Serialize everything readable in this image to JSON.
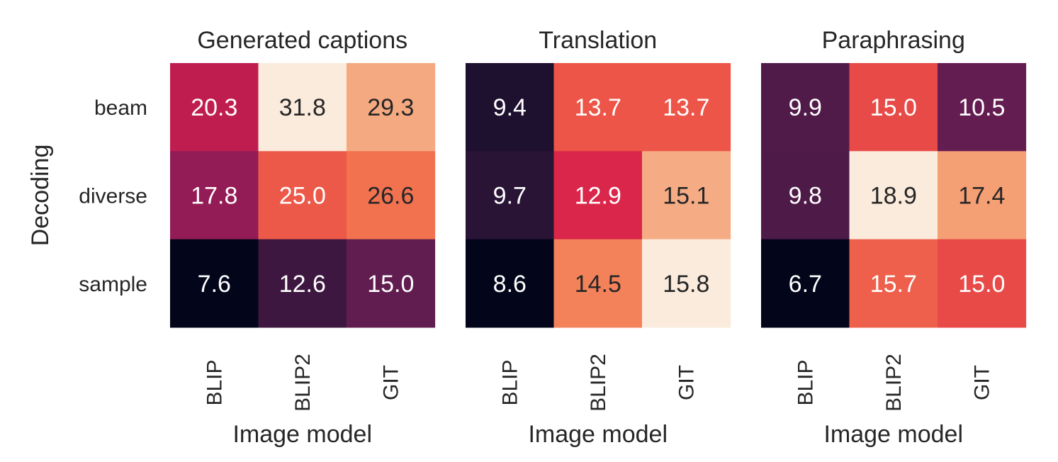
{
  "chart_data": [
    {
      "type": "heatmap",
      "title": "Generated captions",
      "xlabel": "Image model",
      "ylabel": "Decoding",
      "x_categories": [
        "BLIP",
        "BLIP2",
        "GIT"
      ],
      "y_categories": [
        "beam",
        "diverse",
        "sample"
      ],
      "values": [
        [
          20.3,
          31.8,
          29.3
        ],
        [
          17.8,
          25.0,
          26.6
        ],
        [
          7.6,
          12.6,
          15.0
        ]
      ],
      "labels": [
        [
          "20.3",
          "31.8",
          "29.3"
        ],
        [
          "17.8",
          "25.0",
          "26.6"
        ],
        [
          "7.6",
          "12.6",
          "15.0"
        ]
      ],
      "colormap": "rocket",
      "colorbar": false,
      "grid": false
    },
    {
      "type": "heatmap",
      "title": "Translation",
      "xlabel": "Image model",
      "ylabel": "",
      "x_categories": [
        "BLIP",
        "BLIP2",
        "GIT"
      ],
      "y_categories": [
        "beam",
        "diverse",
        "sample"
      ],
      "values": [
        [
          9.4,
          13.7,
          13.7
        ],
        [
          9.7,
          12.9,
          15.1
        ],
        [
          8.6,
          14.5,
          15.8
        ]
      ],
      "labels": [
        [
          "9.4",
          "13.7",
          "13.7"
        ],
        [
          "9.7",
          "12.9",
          "15.1"
        ],
        [
          "8.6",
          "14.5",
          "15.8"
        ]
      ],
      "colormap": "rocket",
      "colorbar": false,
      "grid": false
    },
    {
      "type": "heatmap",
      "title": "Paraphrasing",
      "xlabel": "Image model",
      "ylabel": "",
      "x_categories": [
        "BLIP",
        "BLIP2",
        "GIT"
      ],
      "y_categories": [
        "beam",
        "diverse",
        "sample"
      ],
      "values": [
        [
          9.9,
          15.0,
          10.5
        ],
        [
          9.8,
          18.9,
          17.4
        ],
        [
          6.7,
          15.7,
          15.0
        ]
      ],
      "labels": [
        [
          "9.9",
          "15.0",
          "10.5"
        ],
        [
          "9.8",
          "18.9",
          "17.4"
        ],
        [
          "6.7",
          "15.7",
          "15.0"
        ]
      ],
      "colormap": "rocket",
      "colorbar": false,
      "grid": false
    }
  ]
}
